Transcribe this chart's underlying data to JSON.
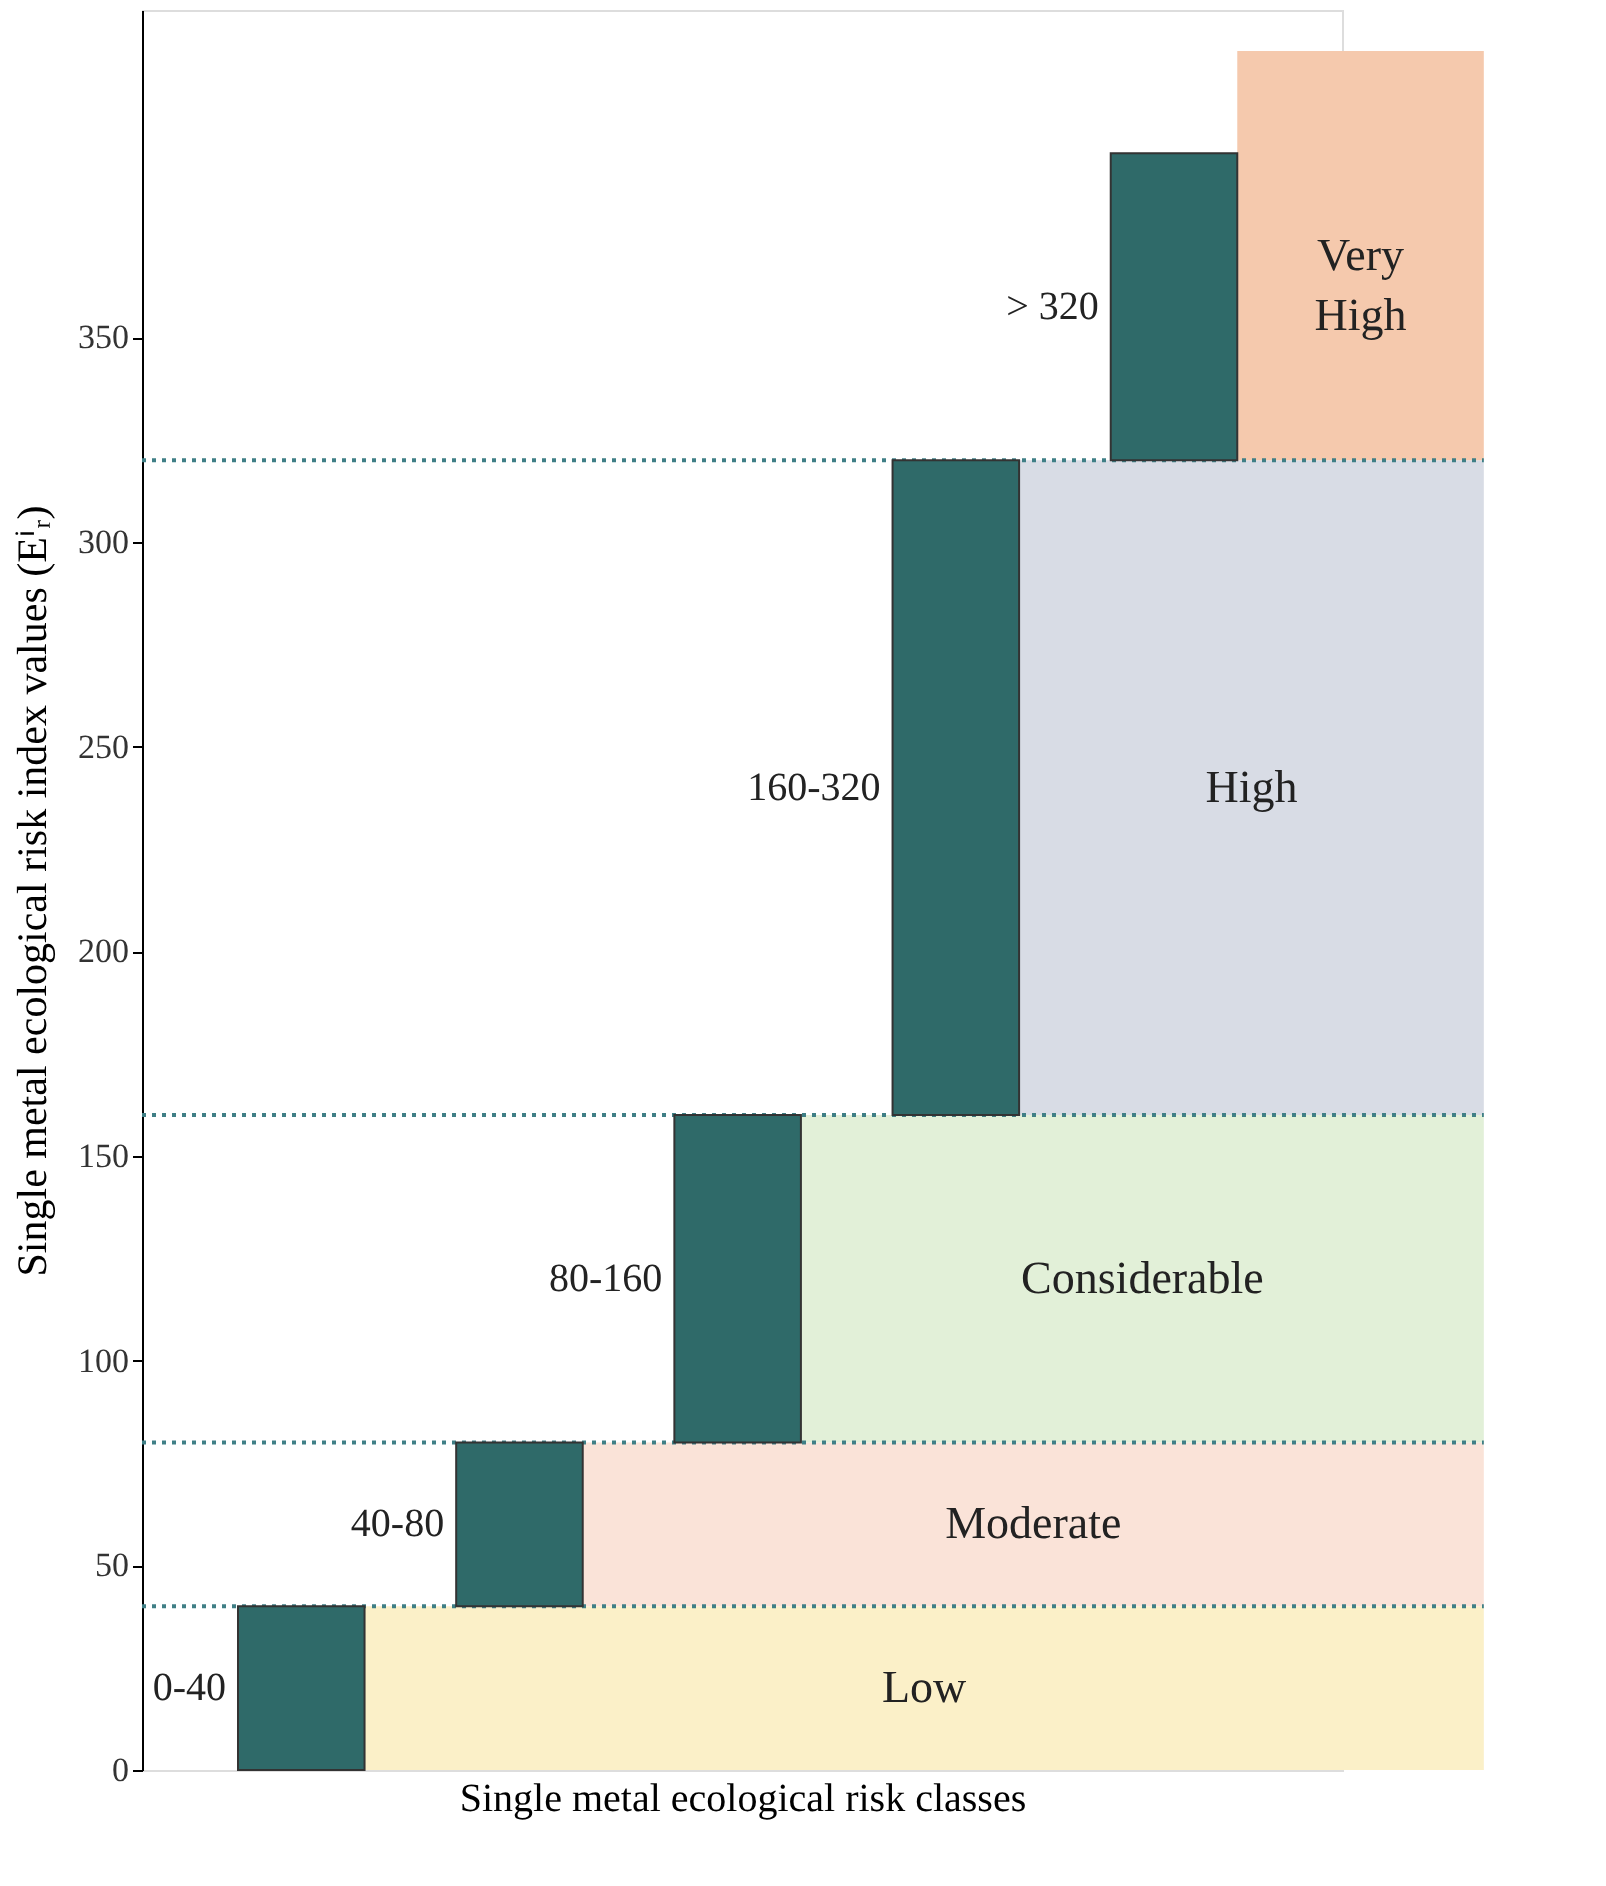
{
  "chart_data": {
    "type": "bar",
    "xlabel": "Single metal ecological risk classes",
    "ylabel": "Single metal ecological risk index values (Eⁱᵣ)",
    "categories": [
      null,
      null,
      null,
      null,
      null
    ],
    "series": [
      {
        "color": "#2f6a69",
        "values": [
          40,
          40,
          80,
          160,
          75
        ],
        "base": [
          0,
          40,
          80,
          160,
          320
        ]
      }
    ],
    "annotations": [
      "0-40",
      "40-80",
      "80-160",
      "160-320",
      "> 320"
    ],
    "bands": [
      {
        "axis": "y",
        "from": 0,
        "to": 40,
        "label": "Low",
        "color": "#fbf0c8"
      },
      {
        "axis": "y",
        "from": 40,
        "to": 80,
        "label": "Moderate",
        "color": "#fae3d8"
      },
      {
        "axis": "y",
        "from": 80,
        "to": 160,
        "label": "Considerable",
        "color": "#e2f0d8"
      },
      {
        "axis": "y",
        "from": 160,
        "to": 320,
        "label": "High",
        "color": "#d8dce5"
      },
      {
        "axis": "y",
        "from": 320,
        "to": 420,
        "label": "Very\nHigh",
        "color": "#f5c9ad"
      }
    ],
    "ref_lines": [
      {
        "axis": "y",
        "value": 40,
        "color": "#3f7f86",
        "line_style": "dotted"
      },
      {
        "axis": "y",
        "value": 80,
        "color": "#3f7f86",
        "line_style": "dotted"
      },
      {
        "axis": "y",
        "value": 160,
        "color": "#3f7f86",
        "line_style": "dotted"
      },
      {
        "axis": "y",
        "value": 320,
        "color": "#3f7f86",
        "line_style": "dotted"
      }
    ],
    "ylim": [
      0,
      430
    ],
    "yticks": [
      0,
      50,
      100,
      150,
      200,
      250,
      300,
      350
    ],
    "grid": false,
    "tick_labels": "y"
  }
}
